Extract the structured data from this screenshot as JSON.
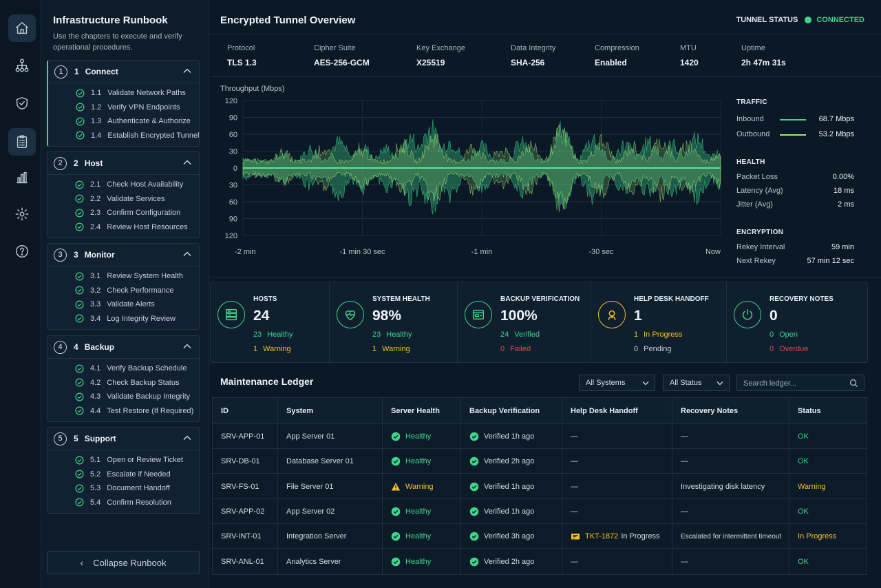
{
  "nav": [
    "home-icon",
    "network-icon",
    "shield-icon",
    "clipboard-icon",
    "bar-chart-icon",
    "gear-icon",
    "help-icon"
  ],
  "runbook": {
    "title": "Infrastructure Runbook",
    "description": "Use the chapters to execute and verify operational procedures.",
    "collapse_label": "Collapse Runbook",
    "chapters": [
      {
        "num": "1",
        "name": "Connect",
        "steps": [
          {
            "num": "1.1",
            "label": "Validate Network Paths"
          },
          {
            "num": "1.2",
            "label": "Verify VPN Endpoints"
          },
          {
            "num": "1.3",
            "label": "Authenticate & Authorize"
          },
          {
            "num": "1.4",
            "label": "Establish Encrypted Tunnel"
          }
        ]
      },
      {
        "num": "2",
        "name": "Host",
        "steps": [
          {
            "num": "2.1",
            "label": "Check Host Availability"
          },
          {
            "num": "2.2",
            "label": "Validate Services"
          },
          {
            "num": "2.3",
            "label": "Confirm Configuration"
          },
          {
            "num": "2.4",
            "label": "Review Host Resources"
          }
        ]
      },
      {
        "num": "3",
        "name": "Monitor",
        "steps": [
          {
            "num": "3.1",
            "label": "Review System Health"
          },
          {
            "num": "3.2",
            "label": "Check Performance"
          },
          {
            "num": "3.3",
            "label": "Validate Alerts"
          },
          {
            "num": "3.4",
            "label": "Log Integrity Review"
          }
        ]
      },
      {
        "num": "4",
        "name": "Backup",
        "steps": [
          {
            "num": "4.1",
            "label": "Verify Backup Schedule"
          },
          {
            "num": "4.2",
            "label": "Check Backup Status"
          },
          {
            "num": "4.3",
            "label": "Validate Backup Integrity"
          },
          {
            "num": "4.4",
            "label": "Test Restore (If Required)"
          }
        ]
      },
      {
        "num": "5",
        "name": "Support",
        "steps": [
          {
            "num": "5.1",
            "label": "Open or Review Ticket"
          },
          {
            "num": "5.2",
            "label": "Escalate if Needed"
          },
          {
            "num": "5.3",
            "label": "Document Handoff"
          },
          {
            "num": "5.4",
            "label": "Confirm Resolution"
          }
        ]
      }
    ]
  },
  "tunnel": {
    "title": "Encrypted Tunnel Overview",
    "status_label": "TUNNEL STATUS",
    "status_value": "CONNECTED",
    "specs": [
      {
        "k": "Protocol",
        "v": "TLS 1.3"
      },
      {
        "k": "Cipher Suite",
        "v": "AES-256-GCM"
      },
      {
        "k": "Key Exchange",
        "v": "X25519"
      },
      {
        "k": "Data Integrity",
        "v": "SHA-256"
      },
      {
        "k": "Compression",
        "v": "Enabled"
      },
      {
        "k": "MTU",
        "v": "1420"
      },
      {
        "k": "Uptime",
        "v": "2h 47m 31s"
      }
    ]
  },
  "chart_data": {
    "type": "area",
    "title": "Throughput (Mbps)",
    "y_ticks": [
      "120",
      "90",
      "60",
      "30",
      "0",
      "30",
      "60",
      "90",
      "120"
    ],
    "ylim": [
      -120,
      120
    ],
    "x_ticks": [
      "-2 min",
      "-1 min 30 sec",
      "-1 min",
      "-30 sec",
      "Now"
    ],
    "series": [
      {
        "name": "Inbound",
        "color": "#3fd58a",
        "peaks": [
          {
            "x": -120,
            "y": 25
          },
          {
            "x": -110,
            "y": 30
          },
          {
            "x": -103,
            "y": 45
          },
          {
            "x": -96,
            "y": 60
          },
          {
            "x": -90,
            "y": 50
          },
          {
            "x": -84,
            "y": 45
          },
          {
            "x": -78,
            "y": 70
          },
          {
            "x": -73,
            "y": 93
          },
          {
            "x": -68,
            "y": 65
          },
          {
            "x": -60,
            "y": 50
          },
          {
            "x": -50,
            "y": 58
          },
          {
            "x": -40,
            "y": 88
          },
          {
            "x": -32,
            "y": 70
          },
          {
            "x": -24,
            "y": 55
          },
          {
            "x": -18,
            "y": 60
          },
          {
            "x": -12,
            "y": 55
          },
          {
            "x": -6,
            "y": 68
          },
          {
            "x": 0,
            "y": 40
          }
        ]
      },
      {
        "name": "Outbound",
        "color": "#a6e37b",
        "peaks": [
          {
            "x": -120,
            "y": 20
          },
          {
            "x": -110,
            "y": 40
          },
          {
            "x": -100,
            "y": 50
          },
          {
            "x": -90,
            "y": 45
          },
          {
            "x": -80,
            "y": 60
          },
          {
            "x": -72,
            "y": 80
          },
          {
            "x": -62,
            "y": 55
          },
          {
            "x": -55,
            "y": 45
          },
          {
            "x": -48,
            "y": 60
          },
          {
            "x": -40,
            "y": 92
          },
          {
            "x": -30,
            "y": 70
          },
          {
            "x": -22,
            "y": 55
          },
          {
            "x": -15,
            "y": 70
          },
          {
            "x": -8,
            "y": 62
          },
          {
            "x": 0,
            "y": 40
          }
        ]
      }
    ]
  },
  "side": {
    "traffic_h": "TRAFFIC",
    "inbound": {
      "label": "Inbound",
      "value": "68.7 Mbps",
      "color": "#3fd58a"
    },
    "outbound": {
      "label": "Outbound",
      "value": "53.2 Mbps",
      "color": "#a6e37b"
    },
    "health_h": "HEALTH",
    "health": [
      {
        "label": "Packet Loss",
        "value": "0.00%"
      },
      {
        "label": "Latency (Avg)",
        "value": "18 ms"
      },
      {
        "label": "Jitter (Avg)",
        "value": "2 ms"
      }
    ],
    "encryption_h": "ENCRYPTION",
    "encryption": [
      {
        "label": "Rekey Interval",
        "value": "59 min"
      },
      {
        "label": "Next Rekey",
        "value": "57 min 12 sec"
      }
    ]
  },
  "cards": [
    {
      "title": "HOSTS",
      "value": "24",
      "icon": "server-icon",
      "color": "#3fd58a",
      "s1n": "23",
      "s1l": "Healthy",
      "s1c": "ok",
      "s2n": "1",
      "s2l": "Warning",
      "s2c": "warn"
    },
    {
      "title": "SYSTEM HEALTH",
      "value": "98%",
      "icon": "heart-pulse-icon",
      "color": "#3fd58a",
      "s1n": "23",
      "s1l": "Healthy",
      "s1c": "ok",
      "s2n": "1",
      "s2l": "Warning",
      "s2c": "warn"
    },
    {
      "title": "BACKUP VERIFICATION",
      "value": "100%",
      "icon": "drive-icon",
      "color": "#3fd58a",
      "s1n": "24",
      "s1l": "Verified",
      "s1c": "ok",
      "s2n": "0",
      "s2l": "Failed",
      "s2c": "fail"
    },
    {
      "title": "HELP DESK HANDOFF",
      "value": "1",
      "icon": "user-support-icon",
      "color": "#f2c12e",
      "s1n": "1",
      "s1l": "In Progress",
      "s1c": "warn",
      "s2n": "0",
      "s2l": "Pending",
      "s2c": "plain"
    },
    {
      "title": "RECOVERY NOTES",
      "value": "0",
      "icon": "power-icon",
      "color": "#3fd58a",
      "s1n": "0",
      "s1l": "Open",
      "s1c": "ok",
      "s2n": "0",
      "s2l": "Overdue",
      "s2c": "fail"
    }
  ],
  "ledger": {
    "title": "Maintenance Ledger",
    "filter_systems": "All Systems",
    "filter_status": "All Status",
    "search_placeholder": "Search ledger...",
    "columns": [
      "ID",
      "System",
      "Server Health",
      "Backup Verification",
      "Help Desk Handoff",
      "Recovery Notes",
      "Status"
    ],
    "rows": [
      {
        "id": "SRV-APP-01",
        "system": "App Server 01",
        "health": "Healthy",
        "health_state": "ok",
        "backup": "Verified 1h ago",
        "handoff": "—",
        "ticket": "",
        "handoff_state": "",
        "notes": "—",
        "status": "OK",
        "status_state": "ok"
      },
      {
        "id": "SRV-DB-01",
        "system": "Database Server 01",
        "health": "Healthy",
        "health_state": "ok",
        "backup": "Verified 2h ago",
        "handoff": "—",
        "ticket": "",
        "handoff_state": "",
        "notes": "—",
        "status": "OK",
        "status_state": "ok"
      },
      {
        "id": "SRV-FS-01",
        "system": "File Server 01",
        "health": "Warning",
        "health_state": "warn",
        "backup": "Verified 1h ago",
        "handoff": "—",
        "ticket": "",
        "handoff_state": "",
        "notes": "Investigating disk latency",
        "status": "Warning",
        "status_state": "warn"
      },
      {
        "id": "SRV-APP-02",
        "system": "App Server 02",
        "health": "Healthy",
        "health_state": "ok",
        "backup": "Verified 1h ago",
        "handoff": "—",
        "ticket": "",
        "handoff_state": "",
        "notes": "—",
        "status": "OK",
        "status_state": "ok"
      },
      {
        "id": "SRV-INT-01",
        "system": "Integration Server",
        "health": "Healthy",
        "health_state": "ok",
        "backup": "Verified 3h ago",
        "handoff": "In Progress",
        "ticket": "TKT-1872",
        "handoff_state": "ticket",
        "notes": "Escalated for intermittent timeout",
        "status": "In Progress",
        "status_state": "warn"
      },
      {
        "id": "SRV-ANL-01",
        "system": "Analytics Server",
        "health": "Healthy",
        "health_state": "ok",
        "backup": "Verified 2h ago",
        "handoff": "—",
        "ticket": "",
        "handoff_state": "",
        "notes": "—",
        "status": "OK",
        "status_state": "ok"
      }
    ]
  }
}
